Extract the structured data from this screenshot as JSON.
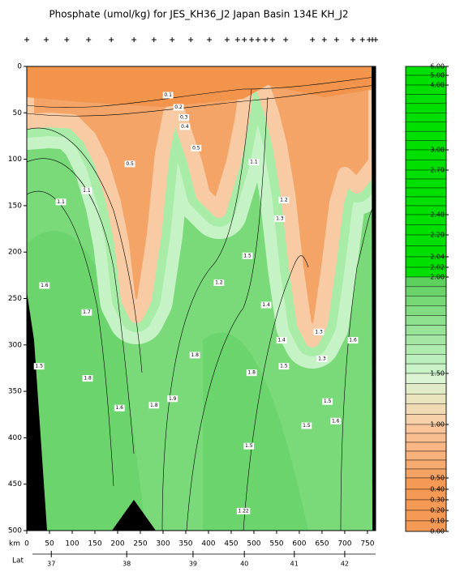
{
  "chart_data": {
    "type": "section",
    "title": "Phosphate (umol/kg) for JES_KH36_J2 Japan Basin 134E KH_J2",
    "xlabel": "km",
    "lat_label": "Lat",
    "xlim": [
      0,
      768
    ],
    "ylim": [
      0,
      500
    ],
    "xticks": [
      0,
      50,
      100,
      150,
      200,
      250,
      300,
      350,
      400,
      450,
      500,
      550,
      600,
      650,
      700,
      750
    ],
    "yticks": [
      0,
      50,
      100,
      150,
      200,
      250,
      300,
      350,
      400,
      450,
      500
    ],
    "lat_ticks": [
      {
        "value": 54,
        "label": "37"
      },
      {
        "value": 220,
        "label": "38"
      },
      {
        "value": 366,
        "label": "39"
      },
      {
        "value": 479,
        "label": "40"
      },
      {
        "value": 589,
        "label": "41"
      },
      {
        "value": 700,
        "label": "42"
      }
    ],
    "stations": [
      0,
      43,
      88,
      136,
      186,
      236,
      280,
      320,
      361,
      402,
      441,
      464,
      479,
      495,
      509,
      525,
      541,
      570,
      629,
      655,
      682,
      718,
      739,
      754,
      761,
      768
    ],
    "contour_labels": [
      {
        "text": "0.1",
        "x": 311,
        "y": 31
      },
      {
        "text": "0.2",
        "x": 334,
        "y": 44
      },
      {
        "text": "0.3",
        "x": 346,
        "y": 55
      },
      {
        "text": "0.4",
        "x": 348,
        "y": 65
      },
      {
        "text": "0.5",
        "x": 373,
        "y": 88
      },
      {
        "text": "0.5",
        "x": 227,
        "y": 105
      },
      {
        "text": "1.1",
        "x": 75,
        "y": 146
      },
      {
        "text": "1.1",
        "x": 132,
        "y": 134
      },
      {
        "text": "1.1",
        "x": 500,
        "y": 103
      },
      {
        "text": "1.2",
        "x": 566,
        "y": 144
      },
      {
        "text": "1.3",
        "x": 557,
        "y": 164
      },
      {
        "text": "1.5",
        "x": 486,
        "y": 204
      },
      {
        "text": "1.2",
        "x": 423,
        "y": 233
      },
      {
        "text": "1.6",
        "x": 39,
        "y": 236
      },
      {
        "text": "1.7",
        "x": 132,
        "y": 265
      },
      {
        "text": "1.5",
        "x": 27,
        "y": 323
      },
      {
        "text": "1.8",
        "x": 134,
        "y": 336
      },
      {
        "text": "1.6",
        "x": 204,
        "y": 368
      },
      {
        "text": "1.8",
        "x": 280,
        "y": 365
      },
      {
        "text": "1.9",
        "x": 321,
        "y": 358
      },
      {
        "text": "1.8",
        "x": 370,
        "y": 311
      },
      {
        "text": "1.8",
        "x": 495,
        "y": 330
      },
      {
        "text": "1.5",
        "x": 489,
        "y": 409
      },
      {
        "text": "1.22",
        "x": 477,
        "y": 479
      },
      {
        "text": "1.6",
        "x": 718,
        "y": 295
      },
      {
        "text": "1.5",
        "x": 662,
        "y": 361
      },
      {
        "text": "1.5",
        "x": 616,
        "y": 387
      },
      {
        "text": "1.6",
        "x": 680,
        "y": 382
      },
      {
        "text": "1.3",
        "x": 643,
        "y": 286
      },
      {
        "text": "1.3",
        "x": 650,
        "y": 315
      },
      {
        "text": "1.4",
        "x": 561,
        "y": 295
      },
      {
        "text": "1.5",
        "x": 566,
        "y": 323
      },
      {
        "text": "1.4",
        "x": 527,
        "y": 257
      }
    ],
    "colorbar": [
      {
        "value": 6,
        "label": "6.00"
      },
      {
        "value": 5,
        "label": "5.00"
      },
      {
        "value": 4,
        "label": "4.00"
      },
      {
        "value": 3,
        "label": "3.00"
      },
      {
        "value": 2.7,
        "label": "2.70"
      },
      {
        "value": 2.4,
        "label": "2.40"
      },
      {
        "value": 2.2,
        "label": "2.20"
      },
      {
        "value": 2.04,
        "label": "2.04"
      },
      {
        "value": 2.02,
        "label": "2.02"
      },
      {
        "value": 2,
        "label": "2.00"
      },
      {
        "value": 1.5,
        "label": "1.50"
      },
      {
        "value": 1,
        "label": "1.00"
      },
      {
        "value": 0.5,
        "label": "0.50"
      },
      {
        "value": 0.4,
        "label": "0.40"
      },
      {
        "value": 0.3,
        "label": "0.30"
      },
      {
        "value": 0.2,
        "label": "0.20"
      },
      {
        "value": 0.1,
        "label": "0.10"
      },
      {
        "value": 0,
        "label": "0.00"
      }
    ]
  }
}
